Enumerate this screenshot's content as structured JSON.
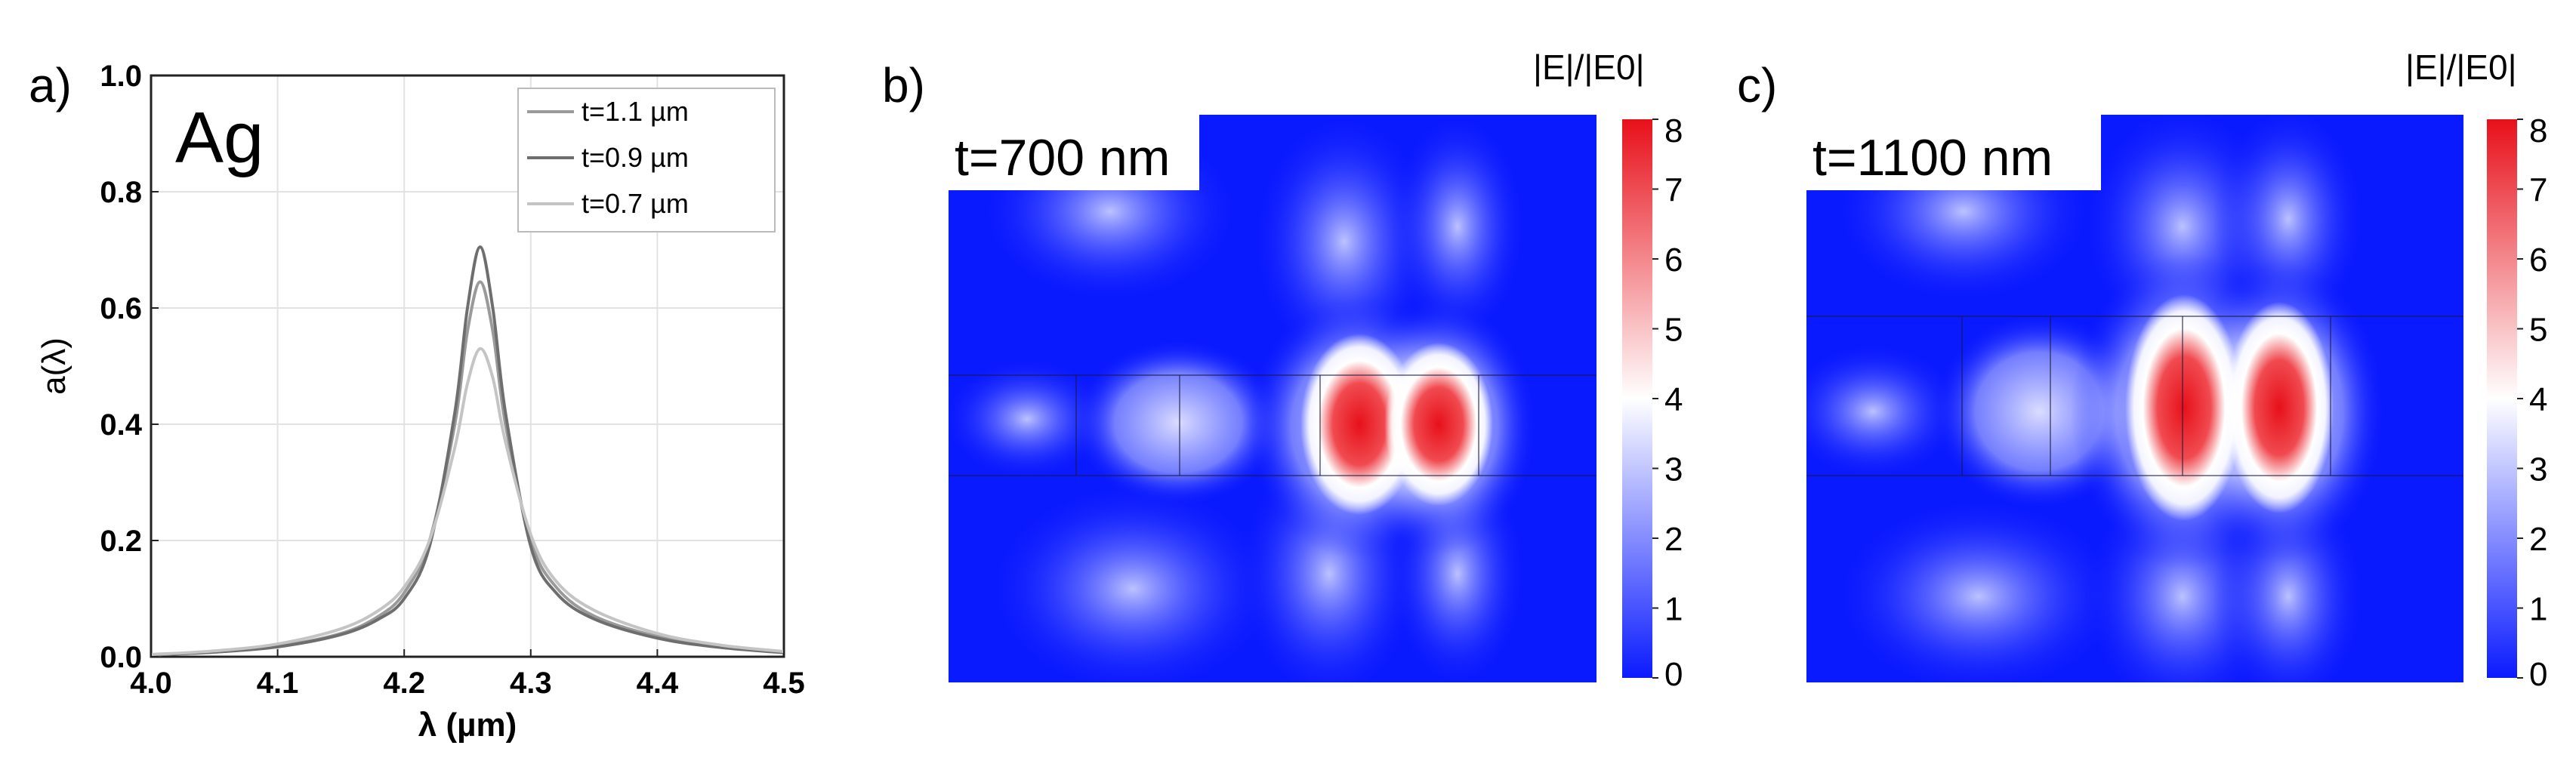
{
  "panels": {
    "a": {
      "panel_label": "a)",
      "material_label": "Ag",
      "legend": [
        "t=1.1 µm",
        "t=0.9 µm",
        "t=0.7 µm"
      ]
    },
    "b": {
      "panel_label": "b)",
      "inset_label": "t=700 nm",
      "colorbar_title": "|E|/|E0|"
    },
    "c": {
      "panel_label": "c)",
      "inset_label": "t=1100 nm",
      "colorbar_title": "|E|/|E0|"
    }
  },
  "colors": {
    "curve_1_1": "#9a9a9a",
    "curve_0_9": "#6e6e6e",
    "curve_0_7": "#c4c4c4",
    "field_low": "#0a1aff",
    "field_mid": "#ffffff",
    "field_high": "#e8101a"
  },
  "chart_data": [
    {
      "type": "line",
      "xlabel": "λ (µm)",
      "ylabel": "a(λ)",
      "xlim": [
        4.0,
        4.5
      ],
      "ylim": [
        0.0,
        1.0
      ],
      "xticks": [
        "4.0",
        "4.1",
        "4.2",
        "4.3",
        "4.4",
        "4.5"
      ],
      "yticks": [
        "0.0",
        "0.2",
        "0.4",
        "0.6",
        "0.8",
        "1.0"
      ],
      "grid": true,
      "legend_position": "top-right",
      "series": [
        {
          "name": "t=1.1 µm",
          "x": [
            4.0,
            4.05,
            4.1,
            4.15,
            4.18,
            4.2,
            4.22,
            4.24,
            4.25,
            4.26,
            4.27,
            4.28,
            4.3,
            4.32,
            4.35,
            4.4,
            4.45,
            4.5
          ],
          "values": [
            0.003,
            0.008,
            0.018,
            0.04,
            0.07,
            0.11,
            0.2,
            0.4,
            0.56,
            0.645,
            0.56,
            0.4,
            0.2,
            0.12,
            0.07,
            0.035,
            0.018,
            0.008
          ]
        },
        {
          "name": "t=0.9 µm",
          "x": [
            4.0,
            4.05,
            4.1,
            4.15,
            4.18,
            4.2,
            4.22,
            4.24,
            4.25,
            4.26,
            4.27,
            4.28,
            4.3,
            4.32,
            4.35,
            4.4,
            4.45,
            4.5
          ],
          "values": [
            0.003,
            0.008,
            0.017,
            0.038,
            0.065,
            0.1,
            0.19,
            0.42,
            0.6,
            0.705,
            0.6,
            0.42,
            0.19,
            0.11,
            0.065,
            0.032,
            0.016,
            0.007
          ]
        },
        {
          "name": "t=0.7 µm",
          "x": [
            4.0,
            4.05,
            4.1,
            4.15,
            4.18,
            4.2,
            4.22,
            4.24,
            4.25,
            4.26,
            4.27,
            4.28,
            4.3,
            4.32,
            4.35,
            4.4,
            4.45,
            4.5
          ],
          "values": [
            0.004,
            0.01,
            0.022,
            0.048,
            0.08,
            0.12,
            0.2,
            0.36,
            0.47,
            0.53,
            0.48,
            0.37,
            0.21,
            0.13,
            0.08,
            0.04,
            0.02,
            0.009
          ]
        }
      ]
    },
    {
      "type": "heatmap",
      "inset_label": "t=700 nm",
      "colorbar_title": "|E|/|E0|",
      "colorbar_range": [
        0,
        8
      ],
      "colorbar_ticks": [
        "0",
        "1",
        "2",
        "3",
        "4",
        "5",
        "6",
        "7",
        "8"
      ]
    },
    {
      "type": "heatmap",
      "inset_label": "t=1100 nm",
      "colorbar_title": "|E|/|E0|",
      "colorbar_range": [
        0,
        8
      ],
      "colorbar_ticks": [
        "0",
        "1",
        "2",
        "3",
        "4",
        "5",
        "6",
        "7",
        "8"
      ]
    }
  ]
}
